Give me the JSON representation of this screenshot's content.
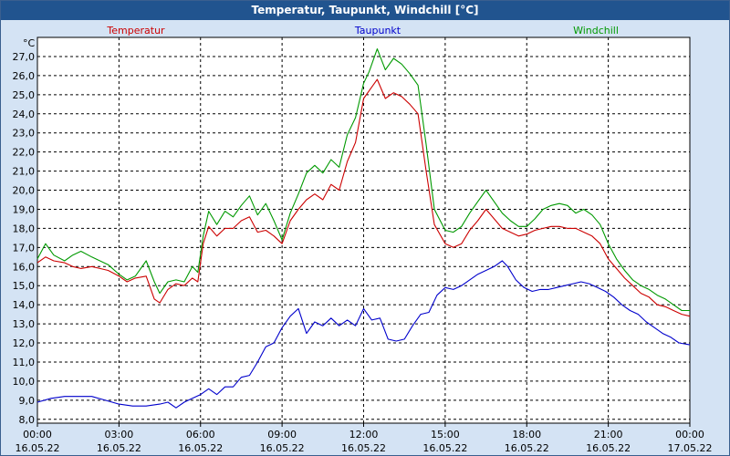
{
  "header": {
    "title": "Temperatur, Taupunkt, Windchill [°C]"
  },
  "colors": {
    "background": "#d4e3f4",
    "titlebar": "#21548f",
    "grid": "#000000"
  },
  "chart_data": {
    "type": "line",
    "title": "Temperatur, Taupunkt, Windchill [°C]",
    "ylabel": "°C",
    "ylim": [
      7.8,
      28.0
    ],
    "yticks": [
      8,
      9,
      10,
      11,
      12,
      13,
      14,
      15,
      16,
      17,
      18,
      19,
      20,
      21,
      22,
      23,
      24,
      25,
      26,
      27
    ],
    "ytick_labels": [
      "8,0",
      "9,0",
      "10,0",
      "11,0",
      "12,0",
      "13,0",
      "14,0",
      "15,0",
      "16,0",
      "17,0",
      "18,0",
      "19,0",
      "20,0",
      "21,0",
      "22,0",
      "23,0",
      "24,0",
      "25,0",
      "26,0",
      "27,0"
    ],
    "xlim": [
      0,
      24
    ],
    "xticks": [
      {
        "x": 0,
        "time": "00:00",
        "date": "16.05.22"
      },
      {
        "x": 3,
        "time": "03:00",
        "date": "16.05.22"
      },
      {
        "x": 6,
        "time": "06:00",
        "date": "16.05.22"
      },
      {
        "x": 9,
        "time": "09:00",
        "date": "16.05.22"
      },
      {
        "x": 12,
        "time": "12:00",
        "date": "16.05.22"
      },
      {
        "x": 15,
        "time": "15:00",
        "date": "16.05.22"
      },
      {
        "x": 18,
        "time": "18:00",
        "date": "16.05.22"
      },
      {
        "x": 21,
        "time": "21:00",
        "date": "16.05.22"
      },
      {
        "x": 24,
        "time": "00:00",
        "date": "17.05.22"
      }
    ],
    "series": [
      {
        "name": "Temperatur",
        "color": "#cc0000",
        "legend": "left",
        "points": [
          [
            0,
            16.2
          ],
          [
            0.3,
            16.5
          ],
          [
            0.6,
            16.3
          ],
          [
            1.0,
            16.2
          ],
          [
            1.3,
            16.0
          ],
          [
            1.6,
            15.9
          ],
          [
            2.0,
            16.0
          ],
          [
            2.3,
            15.9
          ],
          [
            2.6,
            15.8
          ],
          [
            3.0,
            15.5
          ],
          [
            3.3,
            15.2
          ],
          [
            3.6,
            15.4
          ],
          [
            4.0,
            15.5
          ],
          [
            4.3,
            14.3
          ],
          [
            4.5,
            14.1
          ],
          [
            4.8,
            14.8
          ],
          [
            5.1,
            15.1
          ],
          [
            5.4,
            15.0
          ],
          [
            5.7,
            15.4
          ],
          [
            5.9,
            15.2
          ],
          [
            6.1,
            17.2
          ],
          [
            6.3,
            18.1
          ],
          [
            6.6,
            17.6
          ],
          [
            6.9,
            18.0
          ],
          [
            7.2,
            18.0
          ],
          [
            7.5,
            18.4
          ],
          [
            7.8,
            18.6
          ],
          [
            8.1,
            17.8
          ],
          [
            8.4,
            17.9
          ],
          [
            8.7,
            17.6
          ],
          [
            9.0,
            17.2
          ],
          [
            9.3,
            18.4
          ],
          [
            9.6,
            19.0
          ],
          [
            9.9,
            19.5
          ],
          [
            10.2,
            19.8
          ],
          [
            10.5,
            19.5
          ],
          [
            10.8,
            20.3
          ],
          [
            11.1,
            20.0
          ],
          [
            11.4,
            21.5
          ],
          [
            11.7,
            22.5
          ],
          [
            12.0,
            24.8
          ],
          [
            12.2,
            25.2
          ],
          [
            12.5,
            25.8
          ],
          [
            12.8,
            24.8
          ],
          [
            13.1,
            25.1
          ],
          [
            13.4,
            24.9
          ],
          [
            13.7,
            24.5
          ],
          [
            14.0,
            24.0
          ],
          [
            14.3,
            21.0
          ],
          [
            14.6,
            18.2
          ],
          [
            15.0,
            17.2
          ],
          [
            15.3,
            17.0
          ],
          [
            15.6,
            17.2
          ],
          [
            15.9,
            17.9
          ],
          [
            16.2,
            18.4
          ],
          [
            16.5,
            19.0
          ],
          [
            16.8,
            18.5
          ],
          [
            17.1,
            18.0
          ],
          [
            17.4,
            17.8
          ],
          [
            17.7,
            17.6
          ],
          [
            18.0,
            17.7
          ],
          [
            18.3,
            17.9
          ],
          [
            18.6,
            18.0
          ],
          [
            18.9,
            18.1
          ],
          [
            19.2,
            18.1
          ],
          [
            19.5,
            18.0
          ],
          [
            19.8,
            18.0
          ],
          [
            20.1,
            17.8
          ],
          [
            20.4,
            17.6
          ],
          [
            20.7,
            17.2
          ],
          [
            21.0,
            16.4
          ],
          [
            21.3,
            15.9
          ],
          [
            21.6,
            15.4
          ],
          [
            21.9,
            15.0
          ],
          [
            22.2,
            14.6
          ],
          [
            22.5,
            14.4
          ],
          [
            22.8,
            14.0
          ],
          [
            23.1,
            13.9
          ],
          [
            23.4,
            13.7
          ],
          [
            23.7,
            13.5
          ],
          [
            24.0,
            13.4
          ]
        ]
      },
      {
        "name": "Taupunkt",
        "color": "#0000cc",
        "legend": "center",
        "points": [
          [
            0,
            8.9
          ],
          [
            0.5,
            9.1
          ],
          [
            1.0,
            9.2
          ],
          [
            1.5,
            9.2
          ],
          [
            2.0,
            9.2
          ],
          [
            2.5,
            9.0
          ],
          [
            3.0,
            8.8
          ],
          [
            3.5,
            8.7
          ],
          [
            4.0,
            8.7
          ],
          [
            4.5,
            8.8
          ],
          [
            4.8,
            8.9
          ],
          [
            5.1,
            8.6
          ],
          [
            5.4,
            8.9
          ],
          [
            5.7,
            9.1
          ],
          [
            6.0,
            9.3
          ],
          [
            6.3,
            9.6
          ],
          [
            6.6,
            9.3
          ],
          [
            6.9,
            9.7
          ],
          [
            7.2,
            9.7
          ],
          [
            7.5,
            10.2
          ],
          [
            7.8,
            10.3
          ],
          [
            8.1,
            11.0
          ],
          [
            8.4,
            11.8
          ],
          [
            8.7,
            12.0
          ],
          [
            9.0,
            12.8
          ],
          [
            9.3,
            13.4
          ],
          [
            9.6,
            13.8
          ],
          [
            9.9,
            12.5
          ],
          [
            10.2,
            13.1
          ],
          [
            10.5,
            12.9
          ],
          [
            10.8,
            13.3
          ],
          [
            11.1,
            12.9
          ],
          [
            11.4,
            13.2
          ],
          [
            11.7,
            12.9
          ],
          [
            12.0,
            13.8
          ],
          [
            12.3,
            13.2
          ],
          [
            12.6,
            13.3
          ],
          [
            12.9,
            12.2
          ],
          [
            13.2,
            12.1
          ],
          [
            13.5,
            12.2
          ],
          [
            13.8,
            12.9
          ],
          [
            14.1,
            13.5
          ],
          [
            14.4,
            13.6
          ],
          [
            14.7,
            14.5
          ],
          [
            15.0,
            14.9
          ],
          [
            15.3,
            14.8
          ],
          [
            15.6,
            15.0
          ],
          [
            15.9,
            15.3
          ],
          [
            16.2,
            15.6
          ],
          [
            16.5,
            15.8
          ],
          [
            16.8,
            16.0
          ],
          [
            17.1,
            16.3
          ],
          [
            17.3,
            16.0
          ],
          [
            17.6,
            15.3
          ],
          [
            17.9,
            14.9
          ],
          [
            18.2,
            14.7
          ],
          [
            18.5,
            14.8
          ],
          [
            18.8,
            14.8
          ],
          [
            19.1,
            14.9
          ],
          [
            19.4,
            15.0
          ],
          [
            19.7,
            15.1
          ],
          [
            20.0,
            15.2
          ],
          [
            20.3,
            15.1
          ],
          [
            20.6,
            14.9
          ],
          [
            20.9,
            14.7
          ],
          [
            21.2,
            14.4
          ],
          [
            21.5,
            14.0
          ],
          [
            21.8,
            13.7
          ],
          [
            22.1,
            13.5
          ],
          [
            22.4,
            13.1
          ],
          [
            22.7,
            12.8
          ],
          [
            23.0,
            12.5
          ],
          [
            23.3,
            12.3
          ],
          [
            23.6,
            12.0
          ],
          [
            24.0,
            11.9
          ]
        ]
      },
      {
        "name": "Windchill",
        "color": "#009900",
        "legend": "right",
        "points": [
          [
            0,
            16.4
          ],
          [
            0.3,
            17.2
          ],
          [
            0.6,
            16.6
          ],
          [
            1.0,
            16.3
          ],
          [
            1.3,
            16.6
          ],
          [
            1.6,
            16.8
          ],
          [
            2.0,
            16.5
          ],
          [
            2.3,
            16.3
          ],
          [
            2.6,
            16.1
          ],
          [
            3.0,
            15.6
          ],
          [
            3.3,
            15.3
          ],
          [
            3.6,
            15.5
          ],
          [
            4.0,
            16.3
          ],
          [
            4.3,
            15.2
          ],
          [
            4.5,
            14.6
          ],
          [
            4.8,
            15.2
          ],
          [
            5.1,
            15.3
          ],
          [
            5.4,
            15.2
          ],
          [
            5.7,
            16.0
          ],
          [
            5.9,
            15.7
          ],
          [
            6.1,
            17.6
          ],
          [
            6.3,
            18.9
          ],
          [
            6.6,
            18.2
          ],
          [
            6.9,
            18.9
          ],
          [
            7.2,
            18.6
          ],
          [
            7.5,
            19.2
          ],
          [
            7.8,
            19.7
          ],
          [
            8.1,
            18.7
          ],
          [
            8.4,
            19.3
          ],
          [
            8.7,
            18.4
          ],
          [
            9.0,
            17.4
          ],
          [
            9.3,
            18.8
          ],
          [
            9.6,
            19.8
          ],
          [
            9.9,
            20.9
          ],
          [
            10.2,
            21.3
          ],
          [
            10.5,
            20.9
          ],
          [
            10.8,
            21.6
          ],
          [
            11.1,
            21.2
          ],
          [
            11.4,
            22.9
          ],
          [
            11.7,
            23.8
          ],
          [
            12.0,
            25.6
          ],
          [
            12.2,
            26.2
          ],
          [
            12.5,
            27.4
          ],
          [
            12.8,
            26.3
          ],
          [
            13.1,
            26.9
          ],
          [
            13.4,
            26.6
          ],
          [
            13.7,
            26.1
          ],
          [
            14.0,
            25.5
          ],
          [
            14.3,
            22.4
          ],
          [
            14.6,
            19.0
          ],
          [
            15.0,
            17.9
          ],
          [
            15.3,
            17.8
          ],
          [
            15.6,
            18.1
          ],
          [
            15.9,
            18.8
          ],
          [
            16.2,
            19.4
          ],
          [
            16.5,
            20.0
          ],
          [
            16.8,
            19.4
          ],
          [
            17.1,
            18.8
          ],
          [
            17.4,
            18.4
          ],
          [
            17.7,
            18.1
          ],
          [
            18.0,
            18.1
          ],
          [
            18.3,
            18.5
          ],
          [
            18.6,
            19.0
          ],
          [
            18.9,
            19.2
          ],
          [
            19.2,
            19.3
          ],
          [
            19.5,
            19.2
          ],
          [
            19.8,
            18.8
          ],
          [
            20.1,
            19.0
          ],
          [
            20.4,
            18.7
          ],
          [
            20.7,
            18.2
          ],
          [
            21.0,
            17.2
          ],
          [
            21.3,
            16.4
          ],
          [
            21.6,
            15.8
          ],
          [
            21.9,
            15.3
          ],
          [
            22.2,
            15.0
          ],
          [
            22.5,
            14.8
          ],
          [
            22.8,
            14.5
          ],
          [
            23.1,
            14.3
          ],
          [
            23.4,
            14.0
          ],
          [
            23.7,
            13.7
          ],
          [
            24.0,
            13.7
          ]
        ]
      }
    ]
  }
}
